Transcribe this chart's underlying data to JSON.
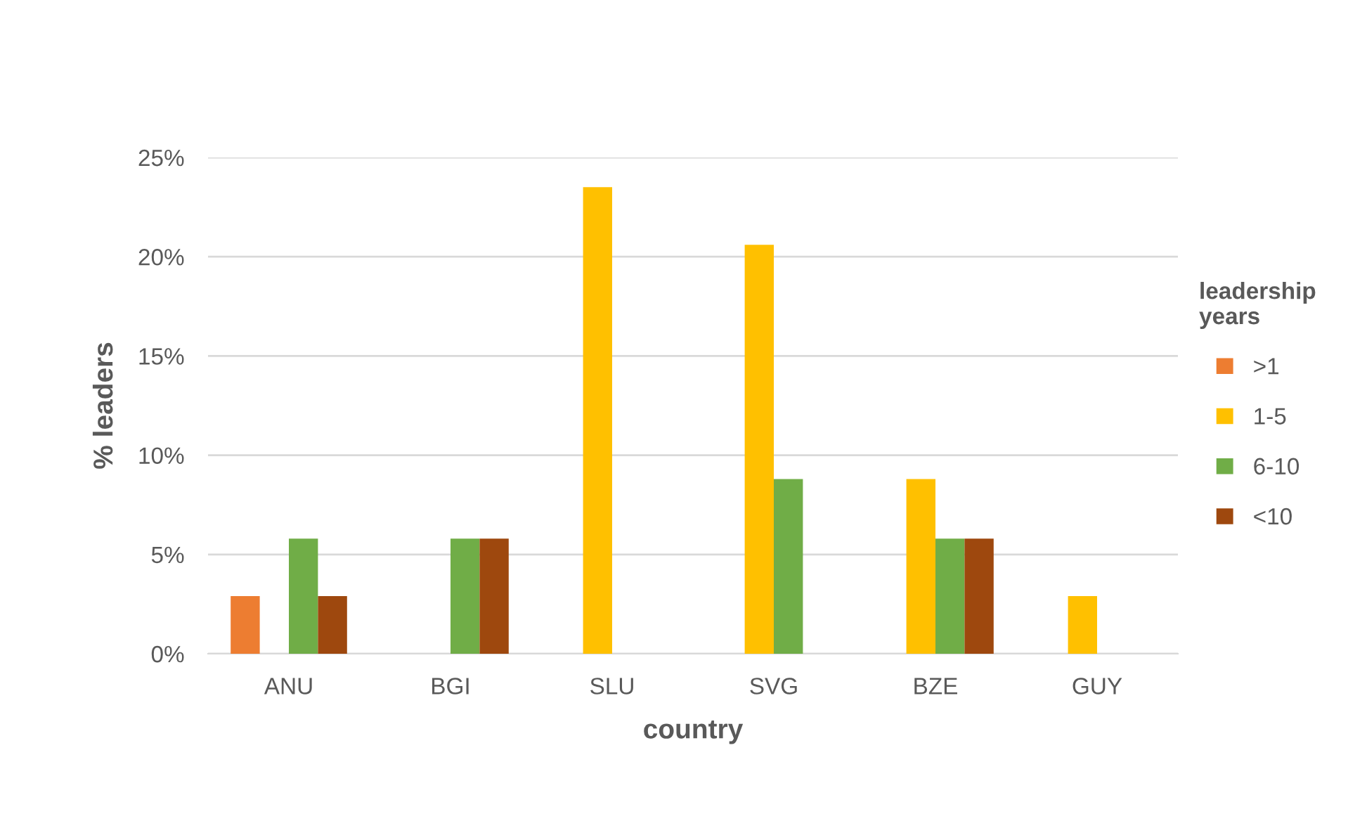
{
  "chart_data": {
    "type": "bar",
    "xlabel": "country",
    "ylabel": "% leaders",
    "legend_title": "leadership\nyears",
    "categories": [
      "ANU",
      "BGI",
      "SLU",
      "SVG",
      "BZE",
      "GUY"
    ],
    "series": [
      {
        "name": ">1",
        "color": "#ed7d31",
        "values": [
          2.9,
          null,
          null,
          null,
          null,
          null
        ]
      },
      {
        "name": "1-5",
        "color": "#ffc000",
        "values": [
          null,
          null,
          23.5,
          20.6,
          8.8,
          2.9
        ]
      },
      {
        "name": "6-10",
        "color": "#70ad47",
        "values": [
          5.8,
          5.8,
          null,
          8.8,
          5.8,
          null
        ]
      },
      {
        "name": "<10",
        "color": "#9e480e",
        "values": [
          2.9,
          5.8,
          null,
          null,
          5.8,
          null
        ]
      }
    ],
    "ylim": [
      0,
      25
    ],
    "yticks": [
      {
        "value": 0,
        "label": "0%"
      },
      {
        "value": 5,
        "label": "5%"
      },
      {
        "value": 10,
        "label": "10%"
      },
      {
        "value": 15,
        "label": "15%"
      },
      {
        "value": 20,
        "label": "20%"
      },
      {
        "value": 25,
        "label": "25%"
      }
    ],
    "grid": "y",
    "legend": "right"
  }
}
